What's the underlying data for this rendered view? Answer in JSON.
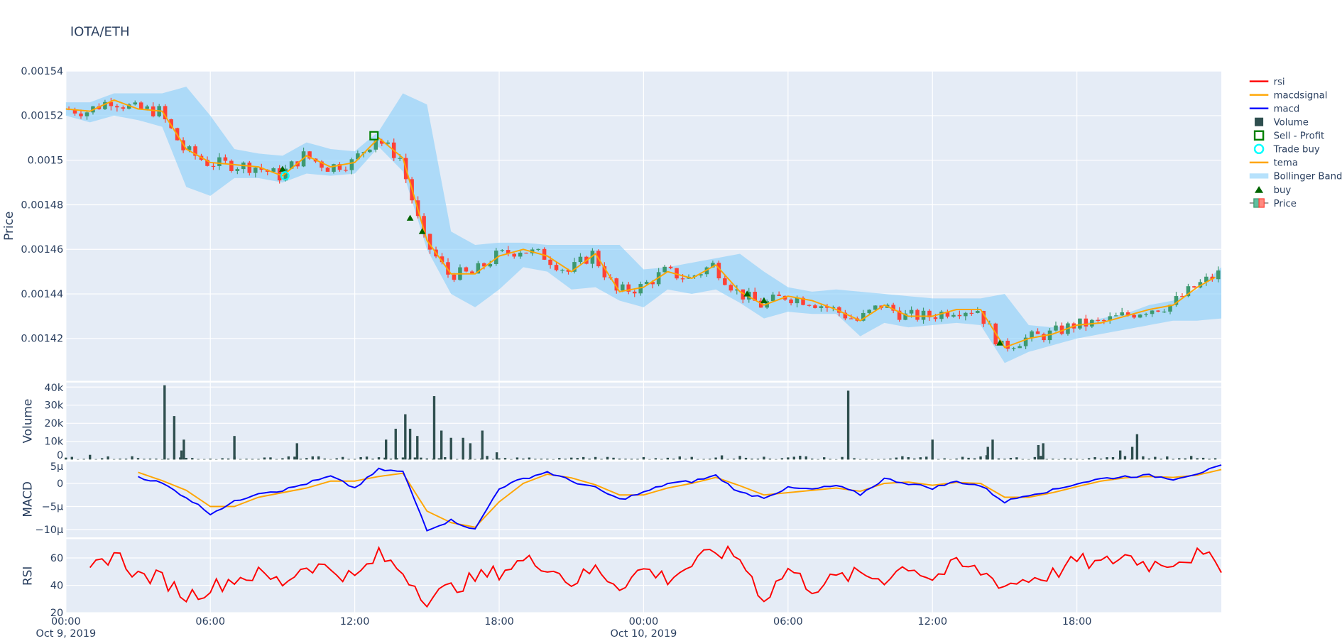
{
  "title": "IOTA/ETH",
  "colors": {
    "increasing": "#3D9970",
    "decreasing": "#FF4136",
    "bollinger": "rgba(135,206,250,0.6)",
    "tema": "#FFA500",
    "macd": "#0000FF",
    "macdsignal": "#FFA500",
    "rsi": "#FF0000",
    "volume": "#2F4F4F",
    "buy": "#006400",
    "trade_buy": "#00FFFF",
    "sell_profit": "#008000",
    "plot_bg": "#E5ECF6"
  },
  "legend": {
    "placement": "right",
    "items": [
      {
        "label": "rsi",
        "symbol": "line",
        "color": "#FF0000"
      },
      {
        "label": "macdsignal",
        "symbol": "line",
        "color": "#FFA500"
      },
      {
        "label": "macd",
        "symbol": "line",
        "color": "#0000FF"
      },
      {
        "label": "Volume",
        "symbol": "bar",
        "color": "#2F4F4F"
      },
      {
        "label": "Sell - Profit",
        "symbol": "square-open",
        "color": "#008000"
      },
      {
        "label": "Trade buy",
        "symbol": "circle-open",
        "color": "#00FFFF"
      },
      {
        "label": "tema",
        "symbol": "line",
        "color": "#FFA500"
      },
      {
        "label": "Bollinger Band",
        "symbol": "fill",
        "color": "rgba(135,206,250,0.6)"
      },
      {
        "label": "buy",
        "symbol": "triangle-up",
        "color": "#006400"
      },
      {
        "label": "Price",
        "symbol": "candle",
        "color": "#3D9970"
      }
    ]
  },
  "chart_data": {
    "type": "candlestick-subplots",
    "x_unit": "hours since Oct 9, 2019 00:00",
    "x_range": [
      0,
      48
    ],
    "x_ticks": [
      {
        "v": 0,
        "t": "00:00",
        "d": "Oct 9, 2019"
      },
      {
        "v": 6,
        "t": "06:00",
        "d": ""
      },
      {
        "v": 12,
        "t": "12:00",
        "d": ""
      },
      {
        "v": 18,
        "t": "18:00",
        "d": ""
      },
      {
        "v": 24,
        "t": "00:00",
        "d": "Oct 10, 2019"
      },
      {
        "v": 30,
        "t": "06:00",
        "d": ""
      },
      {
        "v": 36,
        "t": "12:00",
        "d": ""
      },
      {
        "v": 42,
        "t": "18:00",
        "d": ""
      }
    ],
    "grid": true,
    "price": {
      "ylabel": "Price",
      "ylim": [
        0.001401,
        0.00154
      ],
      "ticks": [
        {
          "v": 0.00142,
          "t": "0.00142"
        },
        {
          "v": 0.00144,
          "t": "0.00144"
        },
        {
          "v": 0.00146,
          "t": "0.00146"
        },
        {
          "v": 0.00148,
          "t": "0.00148"
        },
        {
          "v": 0.0015,
          "t": "0.0015"
        },
        {
          "v": 0.00152,
          "t": "0.00152"
        },
        {
          "v": 0.00154,
          "t": "0.00154"
        }
      ],
      "close_hourly": [
        0.001523,
        0.001522,
        0.001527,
        0.001523,
        0.001522,
        0.001505,
        0.001499,
        0.001498,
        0.001497,
        0.001493,
        0.001502,
        0.001497,
        0.001499,
        0.00151,
        0.001501,
        0.001464,
        0.001449,
        0.001449,
        0.001457,
        0.00146,
        0.001457,
        0.00145,
        0.001458,
        0.001441,
        0.001443,
        0.00145,
        0.001447,
        0.001453,
        0.001441,
        0.001435,
        0.001439,
        0.001437,
        0.001433,
        0.001428,
        0.001435,
        0.00143,
        0.00143,
        0.001433,
        0.001433,
        0.001416,
        0.00142,
        0.001422,
        0.001426,
        0.001427,
        0.00143,
        0.001433,
        0.001435,
        0.001443,
        0.001449
      ],
      "bb_upper_hourly": [
        0.001526,
        0.001526,
        0.00153,
        0.00153,
        0.00153,
        0.001533,
        0.00152,
        0.001505,
        0.001503,
        0.001502,
        0.001508,
        0.001505,
        0.001504,
        0.001513,
        0.00153,
        0.001525,
        0.001468,
        0.001462,
        0.001463,
        0.001463,
        0.001462,
        0.001462,
        0.001462,
        0.001462,
        0.001451,
        0.001452,
        0.001454,
        0.001456,
        0.001458,
        0.00145,
        0.001443,
        0.001441,
        0.001442,
        0.001441,
        0.00144,
        0.001439,
        0.001438,
        0.001438,
        0.001438,
        0.00144,
        0.001426,
        0.001425,
        0.001426,
        0.001429,
        0.001431,
        0.001435,
        0.001437,
        0.001442,
        0.001452
      ],
      "bb_lower_hourly": [
        0.00152,
        0.001517,
        0.00152,
        0.001518,
        0.001515,
        0.001488,
        0.001484,
        0.001492,
        0.001492,
        0.00149,
        0.001494,
        0.001493,
        0.001494,
        0.001506,
        0.001495,
        0.00146,
        0.00144,
        0.001434,
        0.001442,
        0.001452,
        0.00145,
        0.001442,
        0.001443,
        0.001437,
        0.001434,
        0.001442,
        0.00144,
        0.001442,
        0.001436,
        0.001429,
        0.001432,
        0.001431,
        0.001431,
        0.001421,
        0.001427,
        0.001425,
        0.001426,
        0.001427,
        0.001426,
        0.001409,
        0.001414,
        0.001417,
        0.00142,
        0.001422,
        0.001424,
        0.001426,
        0.001428,
        0.001428,
        0.001429
      ],
      "buy": [
        [
          9,
          0.001496
        ],
        [
          14.3,
          0.001474
        ],
        [
          14.8,
          0.001468
        ],
        [
          28.3,
          0.00144
        ],
        [
          29,
          0.001437
        ],
        [
          38.8,
          0.001418
        ]
      ],
      "trade_buy": [
        [
          9.1,
          0.001493
        ]
      ],
      "sell_profit": [
        [
          12.8,
          0.001511
        ]
      ]
    },
    "volume": {
      "ylabel": "Volume",
      "ylim": [
        0,
        42500
      ],
      "ticks": [
        {
          "v": 0,
          "t": "0"
        },
        {
          "v": 10000,
          "t": "10k"
        },
        {
          "v": 20000,
          "t": "20k"
        },
        {
          "v": 30000,
          "t": "30k"
        },
        {
          "v": 40000,
          "t": "40k"
        }
      ],
      "bars": [
        [
          4.1,
          41000
        ],
        [
          4.5,
          24000
        ],
        [
          4.8,
          5000
        ],
        [
          4.9,
          11000
        ],
        [
          7,
          13000
        ],
        [
          9.6,
          9000
        ],
        [
          13.3,
          11000
        ],
        [
          13.7,
          17000
        ],
        [
          14.1,
          25000
        ],
        [
          14.3,
          17000
        ],
        [
          14.6,
          13000
        ],
        [
          15.3,
          35000
        ],
        [
          15.6,
          16000
        ],
        [
          16,
          12000
        ],
        [
          16.5,
          12000
        ],
        [
          16.8,
          9000
        ],
        [
          17.3,
          16000
        ],
        [
          17.9,
          4000
        ],
        [
          32.5,
          38000
        ],
        [
          36,
          11000
        ],
        [
          38.5,
          11000
        ],
        [
          38.3,
          7000
        ],
        [
          40.4,
          8000
        ],
        [
          40.6,
          9000
        ],
        [
          43.8,
          5000
        ],
        [
          44.3,
          7000
        ],
        [
          44.5,
          14000
        ]
      ]
    },
    "macd": {
      "ylabel": "MACD",
      "ylim": [
        -11.7,
        4.8
      ],
      "ticks": [
        {
          "v": 5,
          "t": "5µ"
        },
        {
          "v": 0,
          "t": "0"
        },
        {
          "v": -5,
          "t": "−5µ"
        },
        {
          "v": -10,
          "t": "−10µ"
        }
      ],
      "macd_hourly": [
        null,
        null,
        null,
        1.5,
        0,
        -3,
        -6.5,
        -4,
        -2,
        -1.5,
        0,
        1.5,
        -1,
        3,
        2.5,
        -10,
        -8,
        -10,
        -1,
        1,
        2.5,
        0.5,
        -1,
        -3.5,
        -2,
        0,
        0.4,
        1.7,
        -2,
        -3,
        -1,
        -1.3,
        -0.5,
        -2.4,
        1,
        0,
        -1,
        0.4,
        -0.5,
        -4,
        -2.4,
        -1.5,
        0,
        1,
        1.5,
        1.7,
        1,
        2.2,
        3.7
      ],
      "signal_hourly": [
        null,
        null,
        null,
        2.4,
        0.6,
        -1.5,
        -5,
        -5,
        -3,
        -2,
        -1,
        0.5,
        0.5,
        1.5,
        2.2,
        -6,
        -8.5,
        -9.5,
        -4,
        0,
        2,
        1.2,
        -0.3,
        -2.5,
        -2.5,
        -1,
        0,
        1.3,
        -0.5,
        -2.5,
        -2,
        -1.5,
        -1,
        -1.7,
        0,
        0.3,
        -0.4,
        0.2,
        0,
        -3,
        -3,
        -2,
        -0.7,
        0.5,
        1.2,
        1.5,
        1.3,
        1.8,
        3
      ]
    },
    "rsi": {
      "ylabel": "RSI",
      "ylim": [
        20,
        73.75
      ],
      "ticks": [
        {
          "v": 20,
          "t": "20"
        },
        {
          "v": 40,
          "t": "40"
        },
        {
          "v": 60,
          "t": "60"
        }
      ],
      "rsi_hourly": [
        null,
        50,
        64,
        47,
        45,
        32,
        38,
        45,
        48,
        42,
        55,
        52,
        45,
        62,
        50,
        30,
        38,
        45,
        50,
        58,
        55,
        42,
        52,
        40,
        52,
        45,
        55,
        65,
        60,
        30,
        52,
        38,
        45,
        48,
        45,
        55,
        45,
        55,
        50,
        40,
        45,
        48,
        58,
        55,
        62,
        55,
        58,
        62,
        55
      ]
    }
  }
}
